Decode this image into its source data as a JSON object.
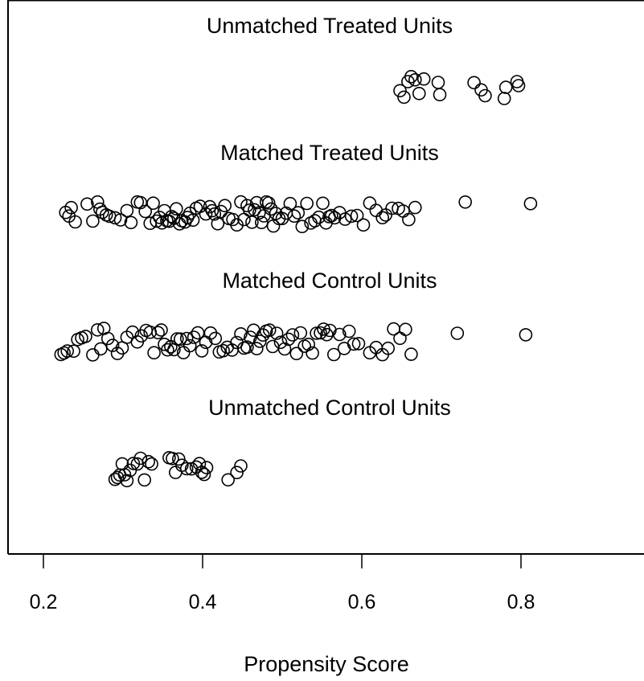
{
  "chart_data": {
    "type": "scatter",
    "title": "",
    "xlabel": "Propensity Score",
    "ylabel": "",
    "xlim": [
      0.19,
      0.96
    ],
    "x_ticks": [
      {
        "value": 0.2,
        "label": "0.2"
      },
      {
        "value": 0.4,
        "label": "0.4"
      },
      {
        "value": 0.6,
        "label": "0.6"
      },
      {
        "value": 0.8,
        "label": "0.8"
      }
    ],
    "marker": "open-circle",
    "marker_color": "#000000",
    "jitter": true,
    "grid": false,
    "series": [
      {
        "name": "Unmatched Treated Units",
        "values": [
          0.648,
          0.653,
          0.658,
          0.662,
          0.667,
          0.672,
          0.678,
          0.696,
          0.698,
          0.741,
          0.75,
          0.755,
          0.779,
          0.781,
          0.795,
          0.797
        ]
      },
      {
        "name": "Matched Treated Units",
        "values": [
          0.228,
          0.232,
          0.235,
          0.24,
          0.255,
          0.262,
          0.268,
          0.271,
          0.274,
          0.279,
          0.283,
          0.29,
          0.297,
          0.305,
          0.31,
          0.318,
          0.322,
          0.328,
          0.334,
          0.338,
          0.342,
          0.346,
          0.349,
          0.352,
          0.355,
          0.358,
          0.361,
          0.364,
          0.367,
          0.371,
          0.374,
          0.378,
          0.381,
          0.384,
          0.388,
          0.392,
          0.397,
          0.404,
          0.409,
          0.412,
          0.415,
          0.419,
          0.423,
          0.428,
          0.433,
          0.438,
          0.443,
          0.448,
          0.452,
          0.456,
          0.459,
          0.462,
          0.465,
          0.468,
          0.471,
          0.474,
          0.477,
          0.48,
          0.483,
          0.486,
          0.489,
          0.492,
          0.496,
          0.5,
          0.505,
          0.51,
          0.515,
          0.52,
          0.525,
          0.531,
          0.536,
          0.541,
          0.546,
          0.551,
          0.555,
          0.559,
          0.562,
          0.566,
          0.572,
          0.579,
          0.587,
          0.594,
          0.602,
          0.61,
          0.618,
          0.626,
          0.63,
          0.638,
          0.646,
          0.652,
          0.659,
          0.667,
          0.73,
          0.812
        ]
      },
      {
        "name": "Matched Control Units",
        "values": [
          0.222,
          0.226,
          0.23,
          0.238,
          0.243,
          0.248,
          0.253,
          0.262,
          0.268,
          0.272,
          0.276,
          0.281,
          0.287,
          0.293,
          0.299,
          0.305,
          0.312,
          0.318,
          0.323,
          0.329,
          0.334,
          0.339,
          0.344,
          0.348,
          0.352,
          0.356,
          0.36,
          0.364,
          0.368,
          0.372,
          0.376,
          0.38,
          0.384,
          0.389,
          0.394,
          0.399,
          0.404,
          0.41,
          0.416,
          0.421,
          0.426,
          0.431,
          0.437,
          0.443,
          0.448,
          0.452,
          0.456,
          0.46,
          0.464,
          0.468,
          0.472,
          0.476,
          0.48,
          0.484,
          0.488,
          0.493,
          0.498,
          0.503,
          0.508,
          0.513,
          0.518,
          0.523,
          0.528,
          0.533,
          0.538,
          0.543,
          0.548,
          0.552,
          0.556,
          0.56,
          0.565,
          0.572,
          0.578,
          0.584,
          0.59,
          0.596,
          0.61,
          0.618,
          0.626,
          0.633,
          0.64,
          0.648,
          0.655,
          0.662,
          0.72,
          0.806
        ]
      },
      {
        "name": "Unmatched Control Units",
        "values": [
          0.29,
          0.293,
          0.296,
          0.299,
          0.302,
          0.305,
          0.309,
          0.313,
          0.318,
          0.322,
          0.327,
          0.332,
          0.336,
          0.358,
          0.362,
          0.366,
          0.37,
          0.374,
          0.38,
          0.386,
          0.392,
          0.396,
          0.399,
          0.402,
          0.405,
          0.432,
          0.443,
          0.448
        ]
      }
    ]
  }
}
